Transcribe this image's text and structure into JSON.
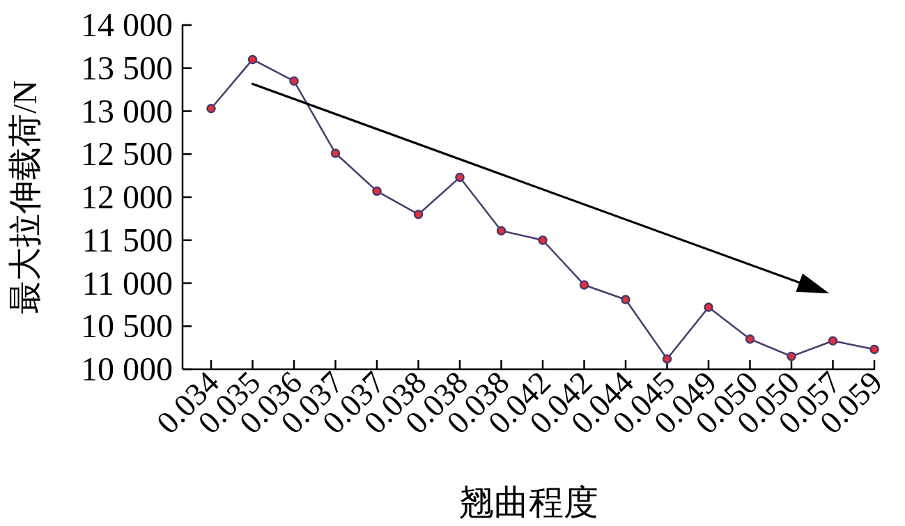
{
  "chart_data": {
    "type": "line",
    "xlabel": "翘曲程度",
    "ylabel": "最大拉伸载荷/N",
    "categories": [
      "0.034",
      "0.035",
      "0.036",
      "0.037",
      "0.037",
      "0.038",
      "0.038",
      "0.038",
      "0.042",
      "0.042",
      "0.044",
      "0.045",
      "0.049",
      "0.050",
      "0.050",
      "0.057",
      "0.059"
    ],
    "series": [
      {
        "color": "#4a3a6e",
        "values": [
          13030,
          13600,
          13350,
          12510,
          12070,
          11800,
          12230,
          11610,
          11500,
          10980,
          10810,
          10120,
          10720,
          10350,
          10150,
          10330,
          10230
        ]
      }
    ],
    "ylim": [
      10000,
      14000
    ],
    "yticks": [
      {
        "value": 10000,
        "label": "10 000"
      },
      {
        "value": 10500,
        "label": "10 500"
      },
      {
        "value": 11000,
        "label": "11 000"
      },
      {
        "value": 11500,
        "label": "11 500"
      },
      {
        "value": 12000,
        "label": "12 000"
      },
      {
        "value": 12500,
        "label": "12 500"
      },
      {
        "value": 13000,
        "label": "13 000"
      },
      {
        "value": 13500,
        "label": "13 500"
      },
      {
        "value": 14000,
        "label": "14 000"
      }
    ],
    "marker": "circle",
    "line_style": "solid",
    "grid": false
  }
}
